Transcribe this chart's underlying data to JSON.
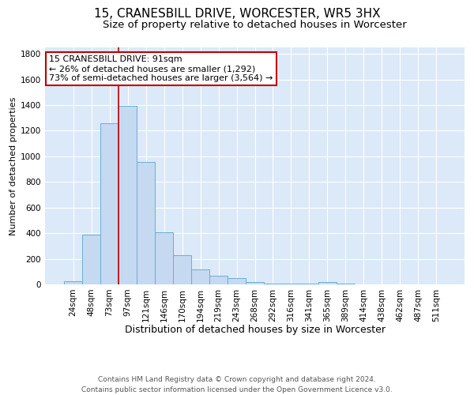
{
  "title": "15, CRANESBILL DRIVE, WORCESTER, WR5 3HX",
  "subtitle": "Size of property relative to detached houses in Worcester",
  "xlabel": "Distribution of detached houses by size in Worcester",
  "ylabel": "Number of detached properties",
  "bar_labels": [
    "24sqm",
    "48sqm",
    "73sqm",
    "97sqm",
    "121sqm",
    "146sqm",
    "170sqm",
    "194sqm",
    "219sqm",
    "243sqm",
    "268sqm",
    "292sqm",
    "316sqm",
    "341sqm",
    "365sqm",
    "389sqm",
    "414sqm",
    "438sqm",
    "462sqm",
    "487sqm",
    "511sqm"
  ],
  "bar_values": [
    25,
    390,
    1255,
    1395,
    955,
    410,
    228,
    115,
    65,
    50,
    18,
    8,
    8,
    8,
    18,
    5,
    0,
    0,
    0,
    0,
    0
  ],
  "bar_color": "#c5d9f0",
  "bar_edge_color": "#6baed6",
  "vline_color": "#c00000",
  "annotation_text": "15 CRANESBILL DRIVE: 91sqm\n← 26% of detached houses are smaller (1,292)\n73% of semi-detached houses are larger (3,564) →",
  "annotation_box_color": "#ffffff",
  "annotation_box_edge_color": "#c00000",
  "ylim": [
    0,
    1850
  ],
  "yticks": [
    0,
    200,
    400,
    600,
    800,
    1000,
    1200,
    1400,
    1600,
    1800
  ],
  "background_color": "#dce9f8",
  "grid_color": "#ffffff",
  "fig_background_color": "#ffffff",
  "footer": "Contains HM Land Registry data © Crown copyright and database right 2024.\nContains public sector information licensed under the Open Government Licence v3.0.",
  "title_fontsize": 11,
  "subtitle_fontsize": 9.5,
  "xlabel_fontsize": 9,
  "ylabel_fontsize": 8,
  "tick_fontsize": 7.5,
  "annotation_fontsize": 8,
  "footer_fontsize": 6.5
}
